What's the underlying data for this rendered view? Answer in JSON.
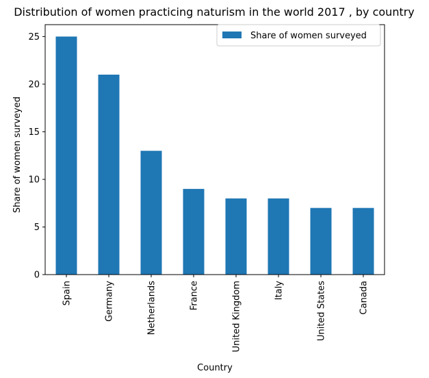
{
  "chart_data": {
    "type": "bar",
    "title": "Distribution of women practicing naturism in the world 2017 , by country",
    "xlabel": "Country",
    "ylabel": "Share of women surveyed",
    "categories": [
      "Spain",
      "Germany",
      "Netherlands",
      "France",
      "United Kingdom",
      "Italy",
      "United States",
      "Canada"
    ],
    "series": [
      {
        "name": "Share of women surveyed",
        "values": [
          25,
          21,
          13,
          9,
          8,
          8,
          7,
          7
        ],
        "color": "#1f77b4"
      }
    ],
    "ylim": [
      0,
      26.25
    ],
    "yticks": [
      0,
      5,
      10,
      15,
      20,
      25
    ],
    "grid": false,
    "legend_position": "top-right"
  }
}
